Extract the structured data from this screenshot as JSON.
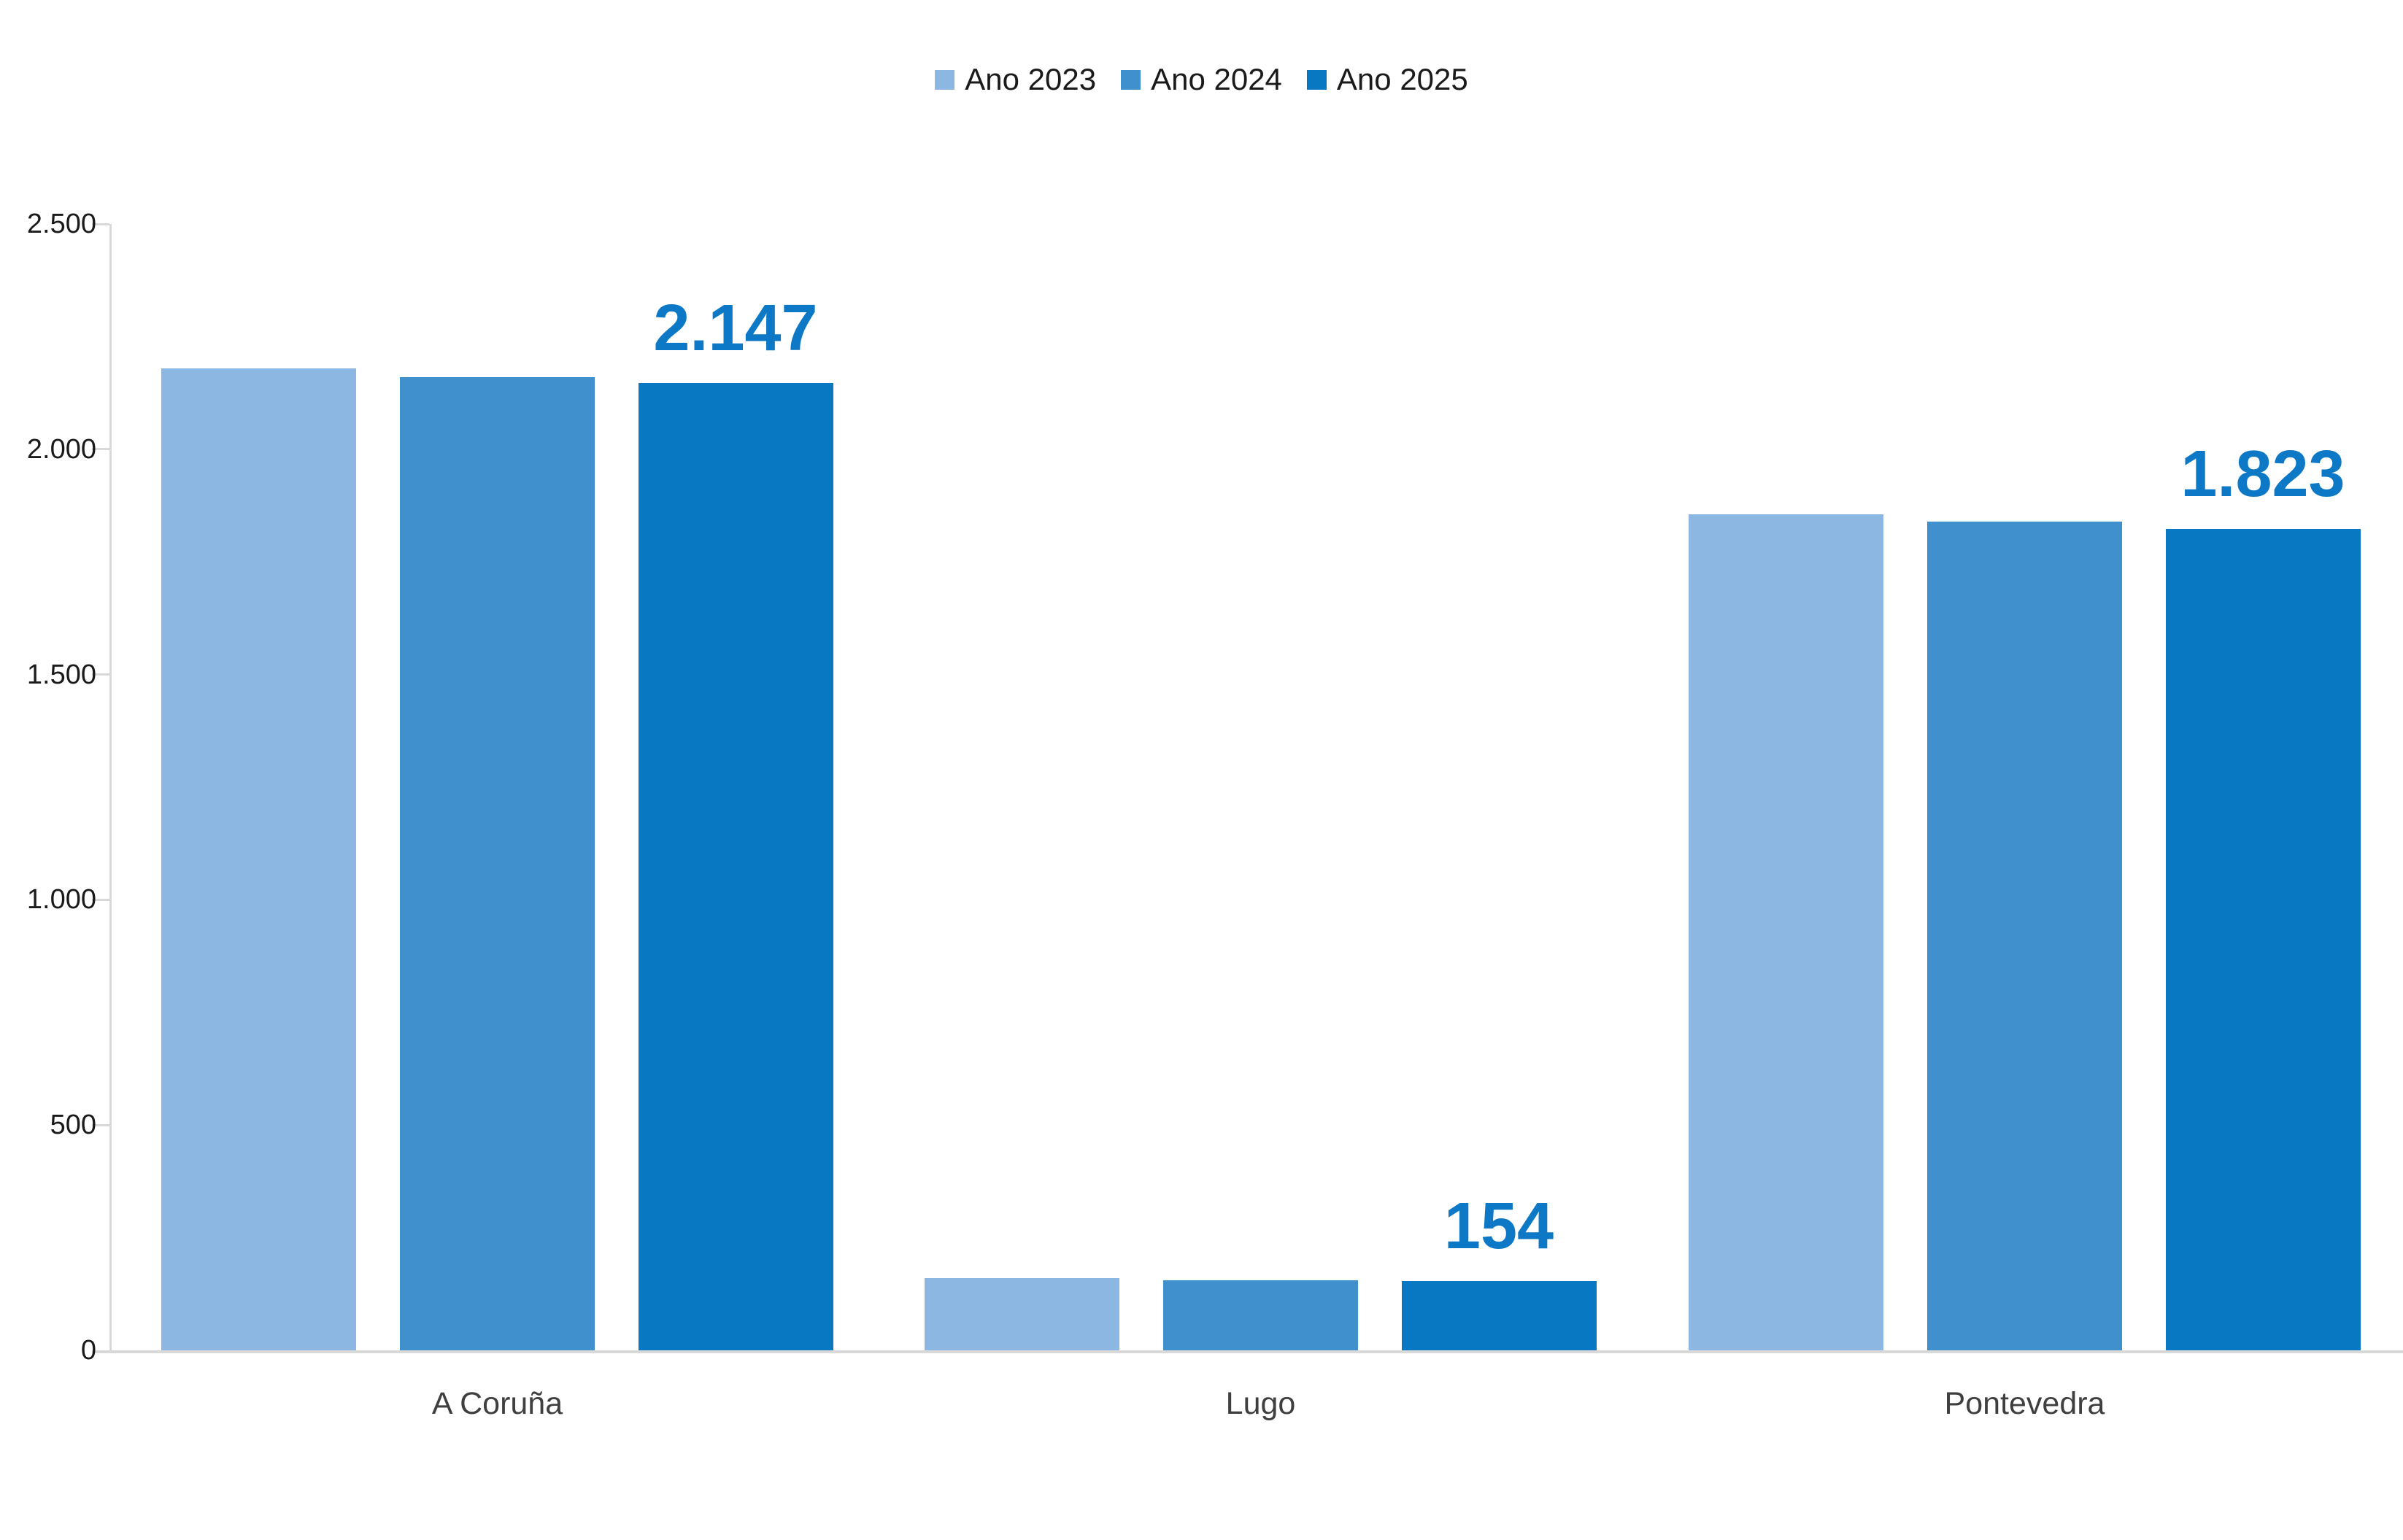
{
  "chart_data": {
    "type": "bar",
    "title": "",
    "categories": [
      "A Coruña",
      "Lugo",
      "Pontevedra"
    ],
    "series": [
      {
        "name": "Ano 2023",
        "color": "#8cb7e3",
        "values": [
          2180,
          160,
          1855
        ]
      },
      {
        "name": "Ano 2024",
        "color": "#4190ce",
        "values": [
          2160,
          156,
          1840
        ]
      },
      {
        "name": "Ano 2025",
        "color": "#0778c1",
        "values": [
          2147,
          154,
          1823
        ],
        "data_labels": [
          "2.147",
          "154",
          "1.823"
        ]
      }
    ],
    "xlabel": "",
    "ylabel": "",
    "ylim": [
      0,
      2500
    ],
    "yticks": [
      {
        "value": 0,
        "label": "0"
      },
      {
        "value": 500,
        "label": "500"
      },
      {
        "value": 1000,
        "label": "1.000"
      },
      {
        "value": 1500,
        "label": "1.500"
      },
      {
        "value": 2000,
        "label": "2.000"
      },
      {
        "value": 2500,
        "label": "2.500"
      }
    ],
    "grid": false,
    "legend_position": "top-center",
    "colors": {
      "data_label": "#0d79c6",
      "axis_line": "#d9d9d9",
      "tick_label": "#1a1a1a",
      "category_label": "#3f3f3f",
      "legend_label": "#1a1a1a",
      "background": "#ffffff"
    }
  }
}
